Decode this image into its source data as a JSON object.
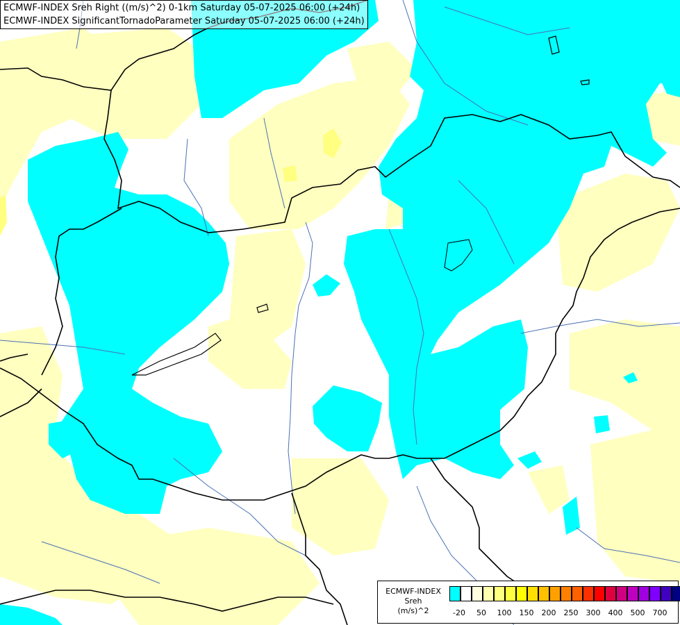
{
  "header": {
    "line1": "ECMWF-INDEX Sreh Right ((m/s)^2) 0-1km Saturday 05-07-2025 06:00 (+24h)",
    "line2": "ECMWF-INDEX SignificantTornadoParameter Saturday 05-07-2025 06:00 (+24h)"
  },
  "colors": {
    "cyan": "#00ffff",
    "pale_yellow": "#ffffc0",
    "yellow": "#ffff80",
    "white": "#ffffff",
    "border": "#000000",
    "river": "#4a6fb5"
  },
  "legend": {
    "title1": "ECMWF-INDEX",
    "title2": "Sreh",
    "title3": "(m/s)^2",
    "swatches": [
      "#00ffff",
      "#ffffff",
      "#ffffe0",
      "#ffffb0",
      "#ffff80",
      "#ffff40",
      "#ffff00",
      "#ffe000",
      "#ffc000",
      "#ffa000",
      "#ff8000",
      "#ff6000",
      "#ff3000",
      "#ff0000",
      "#e00040",
      "#d00080",
      "#c000c0",
      "#a000e0",
      "#8000ff",
      "#4000c0",
      "#000080"
    ],
    "labels": [
      "-20",
      "50",
      "100",
      "150",
      "200",
      "250",
      "300",
      "400",
      "500",
      "700"
    ]
  }
}
